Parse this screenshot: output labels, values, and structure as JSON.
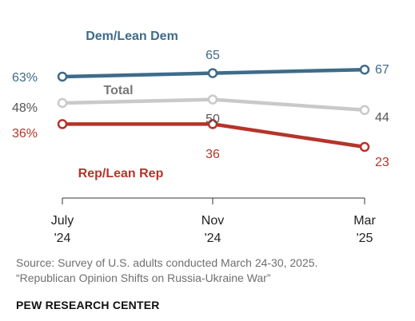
{
  "chart_data": {
    "type": "line",
    "x": [
      "July\n'24",
      "Nov\n'24",
      "Mar\n'25"
    ],
    "series": [
      {
        "name": "Dem/Lean Dem",
        "values": [
          63,
          65,
          67
        ],
        "color": "#3e6b8a",
        "labels": [
          "63%",
          "65",
          "67"
        ]
      },
      {
        "name": "Total",
        "values": [
          48,
          50,
          44
        ],
        "color": "#c9c9c9",
        "labels": [
          "48%",
          "50",
          "44"
        ]
      },
      {
        "name": "Rep/Lean Rep",
        "values": [
          36,
          36,
          23
        ],
        "color": "#b5342a",
        "labels": [
          "36%",
          "36",
          "23"
        ]
      }
    ],
    "ylim": [
      20,
      70
    ],
    "grid": false,
    "legend": "inline"
  },
  "colors": {
    "value_text": "#555555",
    "axis": "#333333"
  },
  "footer": {
    "source_line1": "Source: Survey of U.S. adults conducted March 24-30, 2025.",
    "source_line2": "“Republican Opinion Shifts on Russia-Ukraine War”",
    "org": "PEW RESEARCH CENTER"
  }
}
